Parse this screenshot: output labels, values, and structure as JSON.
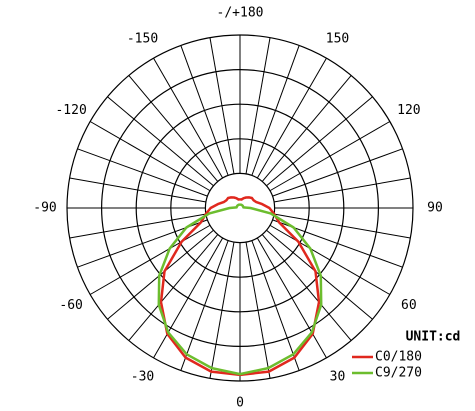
{
  "chart_data": {
    "type": "polar",
    "unit_label": "UNIT:cd",
    "rlim": [
      0,
      100
    ],
    "angle_ticks": [
      0,
      30,
      60,
      90,
      120,
      150,
      {
        "value": 180,
        "label": "-/+180"
      },
      -150,
      -120,
      -90,
      -60,
      -30
    ],
    "theta": [
      -180,
      -170,
      -160,
      -150,
      -140,
      -130,
      -120,
      -110,
      -100,
      -90,
      -80,
      -70,
      -60,
      -50,
      -40,
      -30,
      -20,
      -10,
      0,
      10,
      20,
      30,
      40,
      50,
      60,
      70,
      80,
      90,
      100,
      110,
      120,
      130,
      140,
      150,
      160,
      170,
      180
    ],
    "series": [
      {
        "name": "C0/180",
        "color": "#e0281e",
        "values": [
          5,
          5,
          6,
          7,
          8,
          9,
          9,
          10,
          13,
          17,
          20,
          24,
          39,
          57,
          71,
          84,
          92,
          96,
          96.5,
          96,
          92,
          84,
          71,
          57,
          39,
          24,
          20,
          17,
          13,
          10,
          9,
          9,
          8,
          7,
          6,
          5,
          5
        ]
      },
      {
        "name": "C9/270",
        "color": "#6cbd2e",
        "values": [
          2,
          2,
          2,
          2,
          2,
          2,
          2,
          2,
          2,
          6,
          18,
          33,
          47,
          61,
          73,
          83,
          90,
          94,
          96,
          94,
          90,
          83,
          73,
          61,
          47,
          33,
          18,
          6,
          2,
          2,
          2,
          2,
          2,
          2,
          2,
          2,
          2
        ]
      }
    ]
  }
}
